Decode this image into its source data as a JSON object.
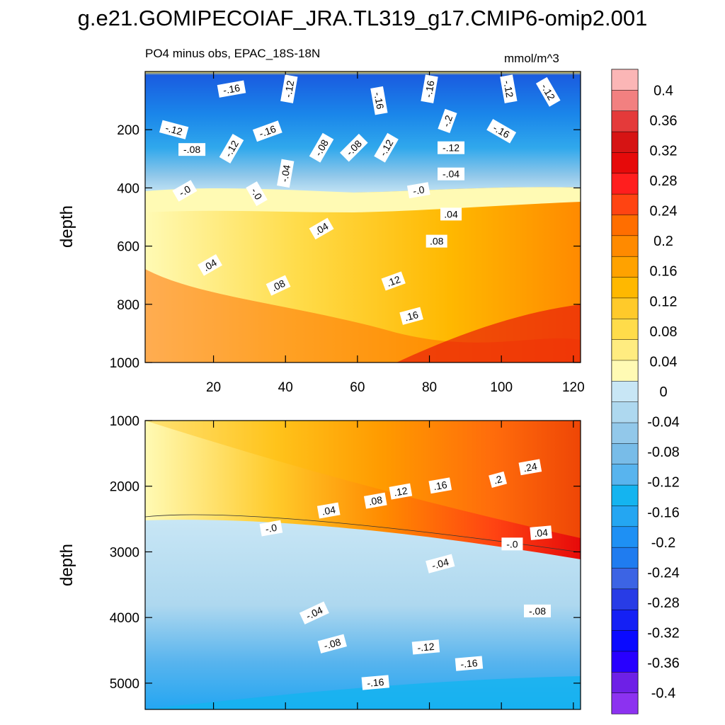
{
  "title": "g.e21.GOMIPECOIAF_JRA.TL319_g17.CMIP6-omip2.001",
  "panel_label": "PO4 minus obs, EPAC_18S-18N",
  "units": "mmol/m^3",
  "chart_data": {
    "type": "contour",
    "title": "g.e21.GOMIPECOIAF_JRA.TL319_g17.CMIP6-omip2.001",
    "subtitle": "PO4 minus obs, EPAC_18S-18N",
    "units": "mmol/m^3",
    "xlim": [
      1,
      122
    ],
    "x_ticks": [
      20,
      40,
      60,
      80,
      100,
      120
    ],
    "panels": [
      {
        "name": "upper",
        "ylabel": "depth",
        "ylim": [
          0,
          1000
        ],
        "y_ticks": [
          200,
          400,
          600,
          800,
          1000
        ],
        "contour_labels": [
          {
            "text": "-.16",
            "x": 25,
            "y": 60,
            "angle": -10
          },
          {
            "text": "-.12",
            "x": 41,
            "y": 60,
            "angle": -80
          },
          {
            "text": "-.16",
            "x": 66,
            "y": 100,
            "angle": 80
          },
          {
            "text": "-.16",
            "x": 80,
            "y": 60,
            "angle": -80
          },
          {
            "text": "-.12",
            "x": 102,
            "y": 60,
            "angle": 80
          },
          {
            "text": "-.12",
            "x": 113,
            "y": 70,
            "angle": 60
          },
          {
            "text": "-.2",
            "x": 85,
            "y": 170,
            "angle": -70
          },
          {
            "text": "-.16",
            "x": 100,
            "y": 205,
            "angle": 30
          },
          {
            "text": "-.12",
            "x": 9,
            "y": 200,
            "angle": 15
          },
          {
            "text": "-.16",
            "x": 35,
            "y": 205,
            "angle": -20
          },
          {
            "text": "-.08",
            "x": 14,
            "y": 268,
            "angle": 0
          },
          {
            "text": "-.12",
            "x": 25,
            "y": 265,
            "angle": -60
          },
          {
            "text": "-.08",
            "x": 50,
            "y": 262,
            "angle": -60
          },
          {
            "text": "-.08",
            "x": 59,
            "y": 262,
            "angle": -45
          },
          {
            "text": "-.12",
            "x": 68,
            "y": 262,
            "angle": -60
          },
          {
            "text": "-.12",
            "x": 86,
            "y": 262,
            "angle": 0
          },
          {
            "text": "-.04",
            "x": 40,
            "y": 350,
            "angle": -80
          },
          {
            "text": "-.04",
            "x": 86,
            "y": 352,
            "angle": 0
          },
          {
            "text": "-.0",
            "x": 12,
            "y": 410,
            "angle": -30
          },
          {
            "text": "-.0",
            "x": 32,
            "y": 420,
            "angle": 60
          },
          {
            "text": "-.0",
            "x": 77,
            "y": 408,
            "angle": -10
          },
          {
            "text": ".04",
            "x": 86,
            "y": 490,
            "angle": 0
          },
          {
            "text": ".04",
            "x": 50,
            "y": 540,
            "angle": -30
          },
          {
            "text": ".08",
            "x": 82,
            "y": 583,
            "angle": 0
          },
          {
            "text": ".04",
            "x": 19,
            "y": 665,
            "angle": -30
          },
          {
            "text": ".08",
            "x": 38,
            "y": 735,
            "angle": -25
          },
          {
            "text": ".12",
            "x": 70,
            "y": 720,
            "angle": -20
          },
          {
            "text": ".16",
            "x": 75,
            "y": 840,
            "angle": -15
          }
        ]
      },
      {
        "name": "lower",
        "ylabel": "depth",
        "ylim": [
          1000,
          5400
        ],
        "y_ticks": [
          1000,
          2000,
          3000,
          4000,
          5000
        ],
        "contour_labels": [
          {
            "text": ".24",
            "x": 108,
            "y": 1710,
            "angle": -10
          },
          {
            "text": ".2",
            "x": 99,
            "y": 1900,
            "angle": -15
          },
          {
            "text": ".16",
            "x": 83,
            "y": 1990,
            "angle": -10
          },
          {
            "text": ".12",
            "x": 72,
            "y": 2080,
            "angle": -10
          },
          {
            "text": ".08",
            "x": 65,
            "y": 2220,
            "angle": -10
          },
          {
            "text": ".04",
            "x": 52,
            "y": 2370,
            "angle": -10
          },
          {
            "text": ".04",
            "x": 111,
            "y": 2710,
            "angle": -5
          },
          {
            "text": "-.0",
            "x": 36,
            "y": 2640,
            "angle": -10
          },
          {
            "text": "-.0",
            "x": 103,
            "y": 2880,
            "angle": 0
          },
          {
            "text": "-.04",
            "x": 83,
            "y": 3180,
            "angle": -15
          },
          {
            "text": "-.04",
            "x": 48,
            "y": 3930,
            "angle": -25
          },
          {
            "text": "-.08",
            "x": 110,
            "y": 3900,
            "angle": 0
          },
          {
            "text": "-.08",
            "x": 53,
            "y": 4400,
            "angle": -15
          },
          {
            "text": "-.12",
            "x": 79,
            "y": 4450,
            "angle": -5
          },
          {
            "text": "-.16",
            "x": 91,
            "y": 4700,
            "angle": -5
          },
          {
            "text": "-.16",
            "x": 65,
            "y": 4990,
            "angle": -5
          }
        ]
      }
    ],
    "colorbar": {
      "ticks": [
        "0.4",
        "0.36",
        "0.32",
        "0.28",
        "0.24",
        "0.2",
        "0.16",
        "0.12",
        "0.08",
        "0.04",
        "0",
        "-0.04",
        "-0.08",
        "-0.12",
        "-0.16",
        "-0.2",
        "-0.24",
        "-0.28",
        "-0.32",
        "-0.36",
        "-0.4"
      ],
      "colors": [
        "#fbb6b6",
        "#f28080",
        "#e43a3a",
        "#d61414",
        "#e60a0a",
        "#ff1e1e",
        "#ff4412",
        "#ff6e00",
        "#ff8a00",
        "#ffa200",
        "#ffb800",
        "#ffca2a",
        "#ffdc4a",
        "#ffec80",
        "#fffab4",
        "#c8e6f5",
        "#aed8ef",
        "#92c8ea",
        "#78bce8",
        "#58b4ee",
        "#14b4f0",
        "#24a6f2",
        "#1e90f4",
        "#1f7cf0",
        "#3c64e4",
        "#283ce6",
        "#1420f5",
        "#0a0aff",
        "#2800ff",
        "#6e20e6",
        "#8c32f0"
      ]
    },
    "field_colors": {
      "deep_blue": "#1a5ce0",
      "mid_blue": "#30a8ec",
      "light_blue": "#c8e6f5",
      "pale_yellow": "#fffab4",
      "yellow": "#ffdc4a",
      "orange": "#ff8a00",
      "red": "#e60a0a"
    }
  }
}
